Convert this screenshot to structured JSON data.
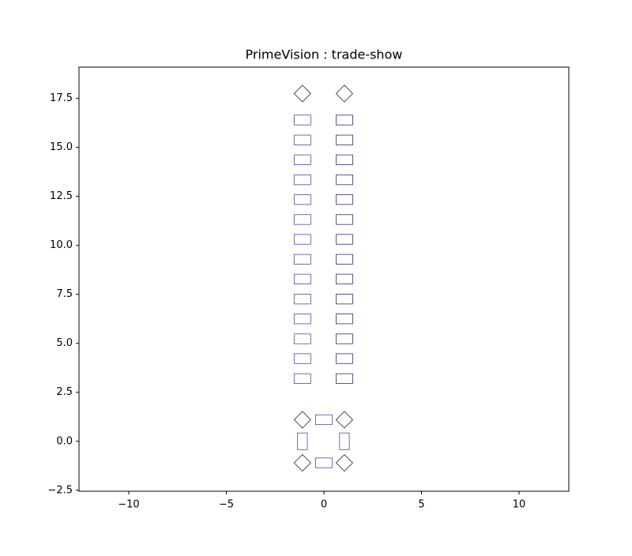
{
  "chart_data": {
    "type": "shapes",
    "title": "PrimeVision : trade-show",
    "xlim": [
      -12.55,
      12.55
    ],
    "ylim": [
      -2.55,
      19.1
    ],
    "xticks": [
      {
        "value": -10,
        "label": "−10"
      },
      {
        "value": -5,
        "label": "−5"
      },
      0,
      5,
      10
    ],
    "yticks": [
      {
        "value": -2.5,
        "label": "−2.5"
      },
      {
        "value": 0,
        "label": "0.0"
      },
      2.5,
      {
        "value": 5,
        "label": "5.0"
      },
      7.5,
      {
        "value": 10,
        "label": "10.0"
      },
      12.5,
      {
        "value": 15,
        "label": "15.0"
      },
      17.5
    ],
    "series": [
      {
        "color": "#4a4aa8",
        "width": 0.85,
        "height": 0.5,
        "angle": 0,
        "x": [
          -1.1,
          -1.1,
          -1.1,
          -1.1,
          -1.1,
          -1.1,
          -1.1,
          -1.1,
          -1.1,
          -1.1,
          -1.1,
          -1.1,
          -1.1,
          -1.1
        ],
        "y": [
          3.2,
          4.22,
          5.23,
          6.25,
          7.26,
          8.28,
          9.29,
          10.31,
          11.32,
          12.34,
          13.35,
          14.37,
          15.38,
          16.4
        ]
      },
      {
        "color": "#2e2e6e",
        "width": 0.85,
        "height": 0.5,
        "angle": 0,
        "x": [
          1.05,
          1.05,
          1.05,
          1.05,
          1.05,
          1.05,
          1.05,
          1.05,
          1.05,
          1.05,
          1.05,
          1.05,
          1.05,
          1.05
        ],
        "y": [
          3.2,
          4.22,
          5.23,
          6.25,
          7.26,
          8.28,
          9.29,
          10.31,
          11.32,
          12.34,
          13.35,
          14.37,
          15.38,
          16.4
        ]
      },
      {
        "color": "#4a4aa8",
        "width": 0.85,
        "height": 0.5,
        "angle": 0,
        "x": [
          0,
          0
        ],
        "y": [
          1.1,
          -1.1
        ]
      },
      {
        "color": "#4a4aa8",
        "width": 0.5,
        "height": 0.85,
        "angle": 0,
        "x": [
          -1.1,
          1.05
        ],
        "y": [
          0,
          0
        ]
      },
      {
        "color": "#222222",
        "width": 0.6,
        "height": 0.6,
        "angle": 45,
        "x": [
          -1.1,
          1.05,
          -1.1,
          1.05,
          -1.1,
          1.05
        ],
        "y": [
          17.75,
          17.75,
          1.1,
          1.1,
          -1.1,
          -1.1
        ]
      }
    ]
  }
}
